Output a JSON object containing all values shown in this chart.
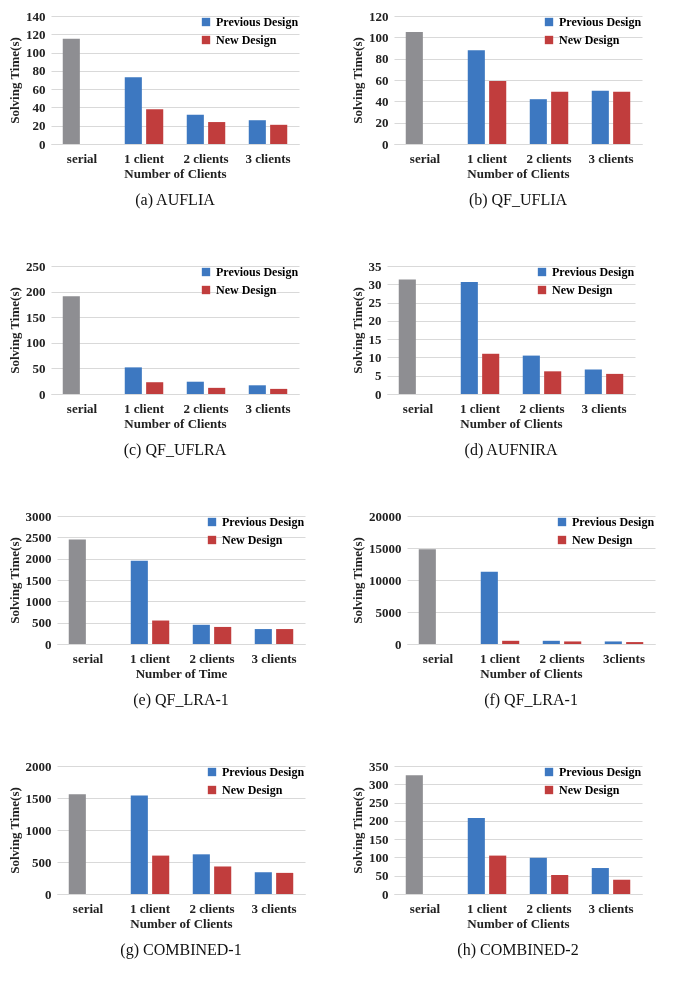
{
  "chart_data": [
    {
      "type": "bar",
      "title": "(a)  AUFLIA",
      "xlabel": "Number of Clients",
      "ylabel": "Solving Time(s)",
      "categories": [
        "serial",
        "1 client",
        "2 clients",
        "3 clients"
      ],
      "ylim": [
        0,
        140
      ],
      "yticks": [
        0,
        20,
        40,
        60,
        80,
        100,
        120,
        140
      ],
      "grid": "y",
      "legend": "top right",
      "series": [
        {
          "color": "#8e8e92",
          "values": [
            115,
            null,
            null,
            null
          ]
        },
        {
          "name": "Previous Design",
          "color": "#3d78c1",
          "values": [
            null,
            73,
            32,
            26
          ]
        },
        {
          "name": "New Design",
          "color": "#c13d3d",
          "values": [
            null,
            38,
            24,
            21
          ]
        }
      ]
    },
    {
      "type": "bar",
      "title": "(b)  QF_UFLIA",
      "xlabel": "Number of Clients",
      "ylabel": "Solving Time(s)",
      "categories": [
        "serial",
        "1 client",
        "2 clients",
        "3 clients"
      ],
      "ylim": [
        0,
        120
      ],
      "yticks": [
        0,
        20,
        40,
        60,
        80,
        100,
        120
      ],
      "grid": "y",
      "legend": "top right",
      "series": [
        {
          "color": "#8e8e92",
          "values": [
            105,
            null,
            null,
            null
          ]
        },
        {
          "name": "Previous Design",
          "color": "#3d78c1",
          "values": [
            null,
            88,
            42,
            50
          ]
        },
        {
          "name": "New Design",
          "color": "#c13d3d",
          "values": [
            null,
            59,
            49,
            49
          ]
        }
      ]
    },
    {
      "type": "bar",
      "title": "(c)  QF_UFLRA",
      "xlabel": "Number of Clients",
      "ylabel": "Solving Time(s)",
      "categories": [
        "serial",
        "1 client",
        "2 clients",
        "3 clients"
      ],
      "ylim": [
        0,
        250
      ],
      "yticks": [
        0,
        50,
        100,
        150,
        200,
        250
      ],
      "grid": "y",
      "legend": "top right",
      "series": [
        {
          "color": "#8e8e92",
          "values": [
            191,
            null,
            null,
            null
          ]
        },
        {
          "name": "Previous Design",
          "color": "#3d78c1",
          "values": [
            null,
            52,
            24,
            17
          ]
        },
        {
          "name": "New Design",
          "color": "#c13d3d",
          "values": [
            null,
            23,
            12,
            10
          ]
        }
      ]
    },
    {
      "type": "bar",
      "title": "(d)  AUFNIRA",
      "xlabel": "Number of Clients",
      "ylabel": "Solving Time(s)",
      "categories": [
        "serial",
        "1 client",
        "2 clients",
        "3 clients"
      ],
      "ylim": [
        0,
        35
      ],
      "yticks": [
        0,
        5,
        10,
        15,
        20,
        25,
        30,
        35
      ],
      "grid": "y",
      "legend": "top right",
      "series": [
        {
          "color": "#8e8e92",
          "values": [
            31.3,
            null,
            null,
            null
          ]
        },
        {
          "name": "Previous Design",
          "color": "#3d78c1",
          "values": [
            null,
            30.6,
            10.5,
            6.7
          ]
        },
        {
          "name": "New Design",
          "color": "#c13d3d",
          "values": [
            null,
            11,
            6.2,
            5.5
          ]
        }
      ]
    },
    {
      "type": "bar",
      "title": "(e)  QF_LRA-1",
      "xlabel": "Number of Time",
      "ylabel": "Solving Time(s)",
      "categories": [
        "serial",
        "1 client",
        "2 clients",
        "3 clients"
      ],
      "ylim": [
        0,
        3000
      ],
      "yticks": [
        0,
        500,
        1000,
        1500,
        2000,
        2500,
        3000
      ],
      "grid": "y",
      "legend": "top right",
      "series": [
        {
          "color": "#8e8e92",
          "values": [
            2450,
            null,
            null,
            null
          ]
        },
        {
          "name": "Previous Design",
          "color": "#3d78c1",
          "values": [
            null,
            1950,
            450,
            350
          ]
        },
        {
          "name": "New Design",
          "color": "#c13d3d",
          "values": [
            null,
            550,
            400,
            350
          ]
        }
      ]
    },
    {
      "type": "bar",
      "title": "(f)  QF_LRA-1",
      "xlabel": "Number of Clients",
      "ylabel": "Solving Time(s)",
      "categories": [
        "serial",
        "1 client",
        "2 clients",
        "3clients"
      ],
      "ylim": [
        0,
        20000
      ],
      "yticks": [
        0,
        5000,
        10000,
        15000,
        20000
      ],
      "grid": "y",
      "legend": "top right",
      "series": [
        {
          "color": "#8e8e92",
          "values": [
            14800,
            null,
            null,
            null
          ]
        },
        {
          "name": "Previous Design",
          "color": "#3d78c1",
          "values": [
            null,
            11300,
            500,
            400
          ]
        },
        {
          "name": "New Design",
          "color": "#c13d3d",
          "values": [
            null,
            500,
            400,
            300
          ]
        }
      ]
    },
    {
      "type": "bar",
      "title": "(g)  COMBINED-1",
      "xlabel": "Number of Clients",
      "ylabel": "Solving Time(s)",
      "categories": [
        "serial",
        "1 client",
        "2 clients",
        "3 clients"
      ],
      "ylim": [
        0,
        2000
      ],
      "yticks": [
        0,
        500,
        1000,
        1500,
        2000
      ],
      "grid": "y",
      "legend": "top right",
      "series": [
        {
          "color": "#8e8e92",
          "values": [
            1560,
            null,
            null,
            null
          ]
        },
        {
          "name": "Previous Design",
          "color": "#3d78c1",
          "values": [
            null,
            1540,
            620,
            340
          ]
        },
        {
          "name": "New Design",
          "color": "#c13d3d",
          "values": [
            null,
            600,
            430,
            330
          ]
        }
      ]
    },
    {
      "type": "bar",
      "title": "(h)  COMBINED-2",
      "xlabel": "Number of Clients",
      "ylabel": "Solving Time(s)",
      "categories": [
        "serial",
        "1 client",
        "2 clients",
        "3 clients"
      ],
      "ylim": [
        0,
        350
      ],
      "yticks": [
        0,
        50,
        100,
        150,
        200,
        250,
        300,
        350
      ],
      "grid": "y",
      "legend": "top right",
      "series": [
        {
          "color": "#8e8e92",
          "values": [
            325,
            null,
            null,
            null
          ]
        },
        {
          "name": "Previous Design",
          "color": "#3d78c1",
          "values": [
            null,
            208,
            99,
            71
          ]
        },
        {
          "name": "New Design",
          "color": "#c13d3d",
          "values": [
            null,
            105,
            52,
            39
          ]
        }
      ]
    }
  ]
}
